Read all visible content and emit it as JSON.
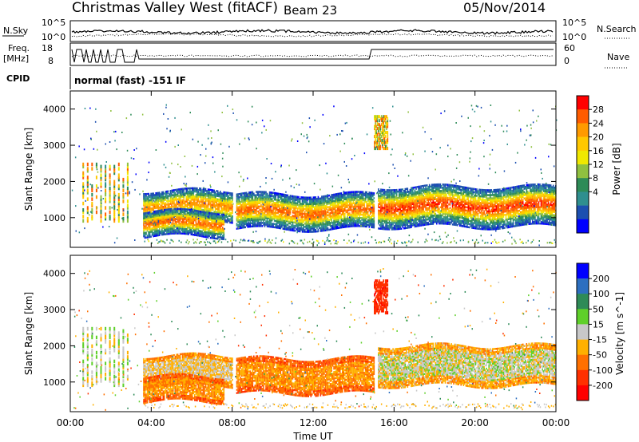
{
  "header": {
    "station": "Christmas Valley West (fitACF)",
    "beam": "Beam 23",
    "date": "05/Nov/2014",
    "nsky_label": "N.Sky",
    "nsearch_label": "N.Search",
    "freq_label_1": "Freq.",
    "freq_label_2": "[MHz]",
    "nave_label": "Nave",
    "cpid_label": "CPID",
    "cpid_value": "normal (fast) -151 IF",
    "noise_left_ticks": [
      "10^5",
      "10^0"
    ],
    "noise_right_ticks": [
      "10^5",
      "10^0"
    ],
    "freq_ticks": [
      "18",
      "8"
    ],
    "nave_ticks": [
      "60",
      "0"
    ]
  },
  "chart_data": [
    {
      "type": "heatmap",
      "panel": "power",
      "ylabel": "Slant Range [km]",
      "xlabel": "",
      "x_ticks": [
        "00:00",
        "04:00",
        "08:00",
        "12:00",
        "16:00",
        "20:00",
        "00:00"
      ],
      "x_hours": [
        0,
        4,
        8,
        12,
        16,
        20,
        24
      ],
      "y_ticks": [
        1000,
        2000,
        3000,
        4000
      ],
      "ylim": [
        180,
        4500
      ],
      "colorbar": {
        "label": "Power [dB]",
        "ticks": [
          "28",
          "24",
          "20",
          "16",
          "12",
          "8",
          "4"
        ],
        "colors": [
          "#ff0000",
          "#ff5c00",
          "#ff9a00",
          "#ffc800",
          "#f0e800",
          "#90c040",
          "#2e8b57",
          "#2f8f8f",
          "#1c4fb0",
          "#0000ff"
        ]
      },
      "bands": [
        {
          "t0": 3.6,
          "t1": 8.0,
          "center_km": 1320,
          "width_km": 260,
          "peak_db": 24
        },
        {
          "t0": 3.6,
          "t1": 7.6,
          "center_km": 820,
          "width_km": 220,
          "peak_db": 26
        },
        {
          "t0": 8.2,
          "t1": 15.0,
          "center_km": 1150,
          "width_km": 300,
          "peak_db": 26
        },
        {
          "t0": 15.2,
          "t1": 24.0,
          "center_km": 1300,
          "width_km": 350,
          "peak_db": 28
        }
      ]
    },
    {
      "type": "heatmap",
      "panel": "velocity",
      "ylabel": "Slant Range [km]",
      "xlabel": "Time UT",
      "x_ticks": [
        "00:00",
        "04:00",
        "08:00",
        "12:00",
        "16:00",
        "20:00",
        "00:00"
      ],
      "x_hours": [
        0,
        4,
        8,
        12,
        16,
        20,
        24
      ],
      "y_ticks": [
        1000,
        2000,
        3000,
        4000
      ],
      "ylim": [
        180,
        4500
      ],
      "colorbar": {
        "label": "Velocity [m s^-1]",
        "ticks": [
          "200",
          "100",
          "50",
          "15",
          "-15",
          "-50",
          "-100",
          "-200"
        ],
        "colors": [
          "#0000ff",
          "#2d6fc0",
          "#2e8b57",
          "#5fd02a",
          "#c8c8c8",
          "#ffb000",
          "#ff7000",
          "#ff3000",
          "#ff0000"
        ]
      },
      "bands": [
        {
          "t0": 3.6,
          "t1": 8.0,
          "center_km": 1300,
          "width_km": 260,
          "velocity": -15
        },
        {
          "t0": 3.6,
          "t1": 7.6,
          "center_km": 800,
          "width_km": 220,
          "velocity": -50
        },
        {
          "t0": 8.2,
          "t1": 15.0,
          "center_km": 1150,
          "width_km": 300,
          "velocity": -50
        },
        {
          "t0": 15.2,
          "t1": 24.0,
          "center_km": 1450,
          "width_km": 350,
          "velocity": 0
        }
      ]
    }
  ]
}
